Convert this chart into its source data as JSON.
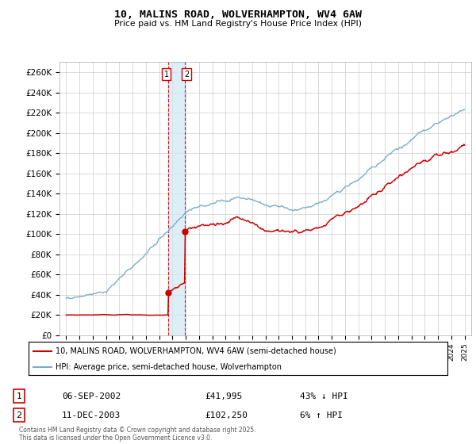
{
  "title": "10, MALINS ROAD, WOLVERHAMPTON, WV4 6AW",
  "subtitle": "Price paid vs. HM Land Registry's House Price Index (HPI)",
  "legend_line1": "10, MALINS ROAD, WOLVERHAMPTON, WV4 6AW (semi-detached house)",
  "legend_line2": "HPI: Average price, semi-detached house, Wolverhampton",
  "transaction1_date": "06-SEP-2002",
  "transaction1_price": "£41,995",
  "transaction1_hpi": "43% ↓ HPI",
  "transaction2_date": "11-DEC-2003",
  "transaction2_price": "£102,250",
  "transaction2_hpi": "6% ↑ HPI",
  "footer": "Contains HM Land Registry data © Crown copyright and database right 2025.\nThis data is licensed under the Open Government Licence v3.0.",
  "ylim": [
    0,
    270000
  ],
  "yticks": [
    0,
    20000,
    40000,
    60000,
    80000,
    100000,
    120000,
    140000,
    160000,
    180000,
    200000,
    220000,
    240000,
    260000
  ],
  "year_start": 1995,
  "year_end": 2025,
  "price_color": "#cc0000",
  "hpi_color": "#7aadcf",
  "shade_color": "#d0e8f5",
  "background_color": "#ffffff",
  "grid_color": "#cccccc",
  "transaction1_year": 2002.68,
  "transaction2_year": 2003.94,
  "transaction1_price_val": 41995,
  "transaction2_price_val": 102250,
  "hpi_at_t1": 72000,
  "hpi_at_t2": 96500
}
